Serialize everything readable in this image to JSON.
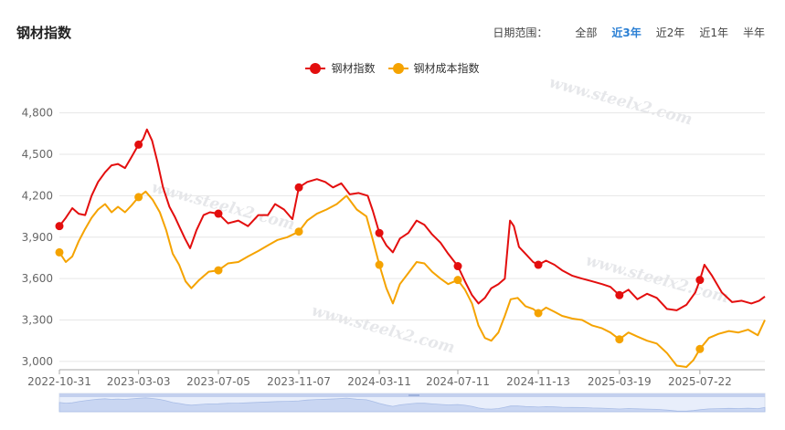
{
  "header": {
    "title": "钢材指数"
  },
  "range_selector": {
    "label": "日期范围：",
    "options": [
      "全部",
      "近3年",
      "近2年",
      "近1年",
      "半年"
    ],
    "active": "近3年"
  },
  "colors": {
    "steel_index": "#e30e0e",
    "cost_index": "#f5a300",
    "active_option": "#2a7fd4",
    "grid": "#e6e6e6"
  },
  "watermark": {
    "text": "www.steelx2.com"
  },
  "chart_data": {
    "type": "line",
    "legend_position": "top-center",
    "grid": true,
    "x_range": [
      "2022-10-31",
      "2025-10-31"
    ],
    "x_ticks": [
      "2022-10-31",
      "2023-03-03",
      "2023-07-05",
      "2023-11-07",
      "2024-03-11",
      "2024-07-11",
      "2024-11-13",
      "2025-03-19",
      "2025-07-22"
    ],
    "y_ticks": [
      "4,800",
      "4,500",
      "4,200",
      "3,900",
      "3,600",
      "3,300",
      "3,000"
    ],
    "ylim": [
      2940,
      4890
    ],
    "series": [
      {
        "name": "钢材指数",
        "color": "#e30e0e",
        "points": [
          [
            "2022-10-31",
            3980
          ],
          [
            "2022-11-10",
            4040
          ],
          [
            "2022-11-20",
            4110
          ],
          [
            "2022-11-30",
            4070
          ],
          [
            "2022-12-10",
            4060
          ],
          [
            "2022-12-20",
            4200
          ],
          [
            "2022-12-30",
            4300
          ],
          [
            "2023-01-10",
            4370
          ],
          [
            "2023-01-20",
            4420
          ],
          [
            "2023-01-30",
            4430
          ],
          [
            "2023-02-10",
            4400
          ],
          [
            "2023-02-20",
            4480
          ],
          [
            "2023-03-03",
            4570
          ],
          [
            "2023-03-10",
            4610
          ],
          [
            "2023-03-16",
            4680
          ],
          [
            "2023-03-24",
            4600
          ],
          [
            "2023-04-01",
            4450
          ],
          [
            "2023-04-10",
            4260
          ],
          [
            "2023-04-20",
            4120
          ],
          [
            "2023-04-28",
            4050
          ],
          [
            "2023-05-06",
            3970
          ],
          [
            "2023-05-14",
            3890
          ],
          [
            "2023-05-22",
            3820
          ],
          [
            "2023-06-01",
            3950
          ],
          [
            "2023-06-12",
            4060
          ],
          [
            "2023-06-22",
            4080
          ],
          [
            "2023-07-05",
            4070
          ],
          [
            "2023-07-20",
            4000
          ],
          [
            "2023-08-05",
            4020
          ],
          [
            "2023-08-20",
            3980
          ],
          [
            "2023-09-05",
            4060
          ],
          [
            "2023-09-20",
            4060
          ],
          [
            "2023-10-01",
            4140
          ],
          [
            "2023-10-15",
            4100
          ],
          [
            "2023-10-28",
            4030
          ],
          [
            "2023-11-07",
            4260
          ],
          [
            "2023-11-20",
            4300
          ],
          [
            "2023-12-05",
            4320
          ],
          [
            "2023-12-18",
            4300
          ],
          [
            "2023-12-30",
            4260
          ],
          [
            "2024-01-12",
            4290
          ],
          [
            "2024-01-25",
            4210
          ],
          [
            "2024-02-08",
            4220
          ],
          [
            "2024-02-22",
            4200
          ],
          [
            "2024-03-01",
            4090
          ],
          [
            "2024-03-11",
            3930
          ],
          [
            "2024-03-22",
            3840
          ],
          [
            "2024-04-01",
            3790
          ],
          [
            "2024-04-12",
            3890
          ],
          [
            "2024-04-25",
            3930
          ],
          [
            "2024-05-08",
            4020
          ],
          [
            "2024-05-20",
            3990
          ],
          [
            "2024-06-01",
            3920
          ],
          [
            "2024-06-14",
            3860
          ],
          [
            "2024-06-26",
            3780
          ],
          [
            "2024-07-11",
            3690
          ],
          [
            "2024-07-22",
            3580
          ],
          [
            "2024-08-02",
            3480
          ],
          [
            "2024-08-12",
            3420
          ],
          [
            "2024-08-22",
            3460
          ],
          [
            "2024-09-01",
            3530
          ],
          [
            "2024-09-12",
            3560
          ],
          [
            "2024-09-22",
            3600
          ],
          [
            "2024-09-30",
            4020
          ],
          [
            "2024-10-06",
            3980
          ],
          [
            "2024-10-14",
            3830
          ],
          [
            "2024-10-24",
            3780
          ],
          [
            "2024-11-05",
            3720
          ],
          [
            "2024-11-13",
            3700
          ],
          [
            "2024-11-25",
            3730
          ],
          [
            "2024-12-08",
            3700
          ],
          [
            "2024-12-20",
            3660
          ],
          [
            "2025-01-05",
            3620
          ],
          [
            "2025-01-20",
            3600
          ],
          [
            "2025-02-05",
            3580
          ],
          [
            "2025-02-20",
            3560
          ],
          [
            "2025-03-05",
            3540
          ],
          [
            "2025-03-19",
            3480
          ],
          [
            "2025-04-02",
            3520
          ],
          [
            "2025-04-16",
            3450
          ],
          [
            "2025-05-01",
            3490
          ],
          [
            "2025-05-16",
            3460
          ],
          [
            "2025-06-01",
            3380
          ],
          [
            "2025-06-16",
            3370
          ],
          [
            "2025-07-01",
            3410
          ],
          [
            "2025-07-15",
            3500
          ],
          [
            "2025-07-22",
            3590
          ],
          [
            "2025-07-29",
            3700
          ],
          [
            "2025-08-10",
            3620
          ],
          [
            "2025-08-25",
            3500
          ],
          [
            "2025-09-10",
            3430
          ],
          [
            "2025-09-25",
            3440
          ],
          [
            "2025-10-10",
            3420
          ],
          [
            "2025-10-22",
            3440
          ],
          [
            "2025-10-31",
            3470
          ]
        ],
        "markers": [
          [
            "2022-10-31",
            3980
          ],
          [
            "2023-03-03",
            4570
          ],
          [
            "2023-07-05",
            4070
          ],
          [
            "2023-11-07",
            4260
          ],
          [
            "2024-03-11",
            3930
          ],
          [
            "2024-07-11",
            3690
          ],
          [
            "2024-11-13",
            3700
          ],
          [
            "2025-03-19",
            3480
          ],
          [
            "2025-07-22",
            3590
          ]
        ]
      },
      {
        "name": "钢材成本指数",
        "color": "#f5a300",
        "points": [
          [
            "2022-10-31",
            3790
          ],
          [
            "2022-11-10",
            3720
          ],
          [
            "2022-11-20",
            3760
          ],
          [
            "2022-11-30",
            3870
          ],
          [
            "2022-12-10",
            3960
          ],
          [
            "2022-12-20",
            4040
          ],
          [
            "2022-12-30",
            4100
          ],
          [
            "2023-01-10",
            4140
          ],
          [
            "2023-01-20",
            4080
          ],
          [
            "2023-01-30",
            4120
          ],
          [
            "2023-02-10",
            4080
          ],
          [
            "2023-02-20",
            4130
          ],
          [
            "2023-03-03",
            4190
          ],
          [
            "2023-03-14",
            4230
          ],
          [
            "2023-03-25",
            4170
          ],
          [
            "2023-04-05",
            4080
          ],
          [
            "2023-04-15",
            3950
          ],
          [
            "2023-04-25",
            3780
          ],
          [
            "2023-05-05",
            3700
          ],
          [
            "2023-05-15",
            3580
          ],
          [
            "2023-05-24",
            3530
          ],
          [
            "2023-06-05",
            3590
          ],
          [
            "2023-06-20",
            3650
          ],
          [
            "2023-07-05",
            3660
          ],
          [
            "2023-07-20",
            3710
          ],
          [
            "2023-08-05",
            3720
          ],
          [
            "2023-08-20",
            3760
          ],
          [
            "2023-09-05",
            3800
          ],
          [
            "2023-09-20",
            3840
          ],
          [
            "2023-10-05",
            3880
          ],
          [
            "2023-10-20",
            3900
          ],
          [
            "2023-11-07",
            3940
          ],
          [
            "2023-11-20",
            4020
          ],
          [
            "2023-12-05",
            4070
          ],
          [
            "2023-12-20",
            4100
          ],
          [
            "2024-01-05",
            4140
          ],
          [
            "2024-01-20",
            4200
          ],
          [
            "2024-02-05",
            4100
          ],
          [
            "2024-02-20",
            4050
          ],
          [
            "2024-03-01",
            3880
          ],
          [
            "2024-03-11",
            3700
          ],
          [
            "2024-03-22",
            3530
          ],
          [
            "2024-04-01",
            3420
          ],
          [
            "2024-04-12",
            3560
          ],
          [
            "2024-04-25",
            3640
          ],
          [
            "2024-05-08",
            3720
          ],
          [
            "2024-05-20",
            3710
          ],
          [
            "2024-06-01",
            3650
          ],
          [
            "2024-06-14",
            3600
          ],
          [
            "2024-06-26",
            3560
          ],
          [
            "2024-07-11",
            3590
          ],
          [
            "2024-07-22",
            3520
          ],
          [
            "2024-08-02",
            3420
          ],
          [
            "2024-08-12",
            3260
          ],
          [
            "2024-08-22",
            3170
          ],
          [
            "2024-09-01",
            3150
          ],
          [
            "2024-09-12",
            3210
          ],
          [
            "2024-09-22",
            3330
          ],
          [
            "2024-10-01",
            3450
          ],
          [
            "2024-10-12",
            3460
          ],
          [
            "2024-10-24",
            3400
          ],
          [
            "2024-11-05",
            3380
          ],
          [
            "2024-11-13",
            3350
          ],
          [
            "2024-11-25",
            3390
          ],
          [
            "2024-12-08",
            3360
          ],
          [
            "2024-12-20",
            3330
          ],
          [
            "2025-01-05",
            3310
          ],
          [
            "2025-01-20",
            3300
          ],
          [
            "2025-02-05",
            3260
          ],
          [
            "2025-02-20",
            3240
          ],
          [
            "2025-03-05",
            3210
          ],
          [
            "2025-03-19",
            3160
          ],
          [
            "2025-04-02",
            3210
          ],
          [
            "2025-04-16",
            3180
          ],
          [
            "2025-05-01",
            3150
          ],
          [
            "2025-05-16",
            3130
          ],
          [
            "2025-06-01",
            3060
          ],
          [
            "2025-06-16",
            2970
          ],
          [
            "2025-07-01",
            2960
          ],
          [
            "2025-07-12",
            3010
          ],
          [
            "2025-07-22",
            3090
          ],
          [
            "2025-08-05",
            3170
          ],
          [
            "2025-08-20",
            3200
          ],
          [
            "2025-09-05",
            3220
          ],
          [
            "2025-09-20",
            3210
          ],
          [
            "2025-10-05",
            3230
          ],
          [
            "2025-10-20",
            3190
          ],
          [
            "2025-10-31",
            3300
          ]
        ],
        "markers": [
          [
            "2022-10-31",
            3790
          ],
          [
            "2023-03-03",
            4190
          ],
          [
            "2023-07-05",
            3660
          ],
          [
            "2023-11-07",
            3940
          ],
          [
            "2024-03-11",
            3700
          ],
          [
            "2024-07-11",
            3590
          ],
          [
            "2024-11-13",
            3350
          ],
          [
            "2025-03-19",
            3160
          ],
          [
            "2025-07-22",
            3090
          ]
        ]
      }
    ]
  }
}
